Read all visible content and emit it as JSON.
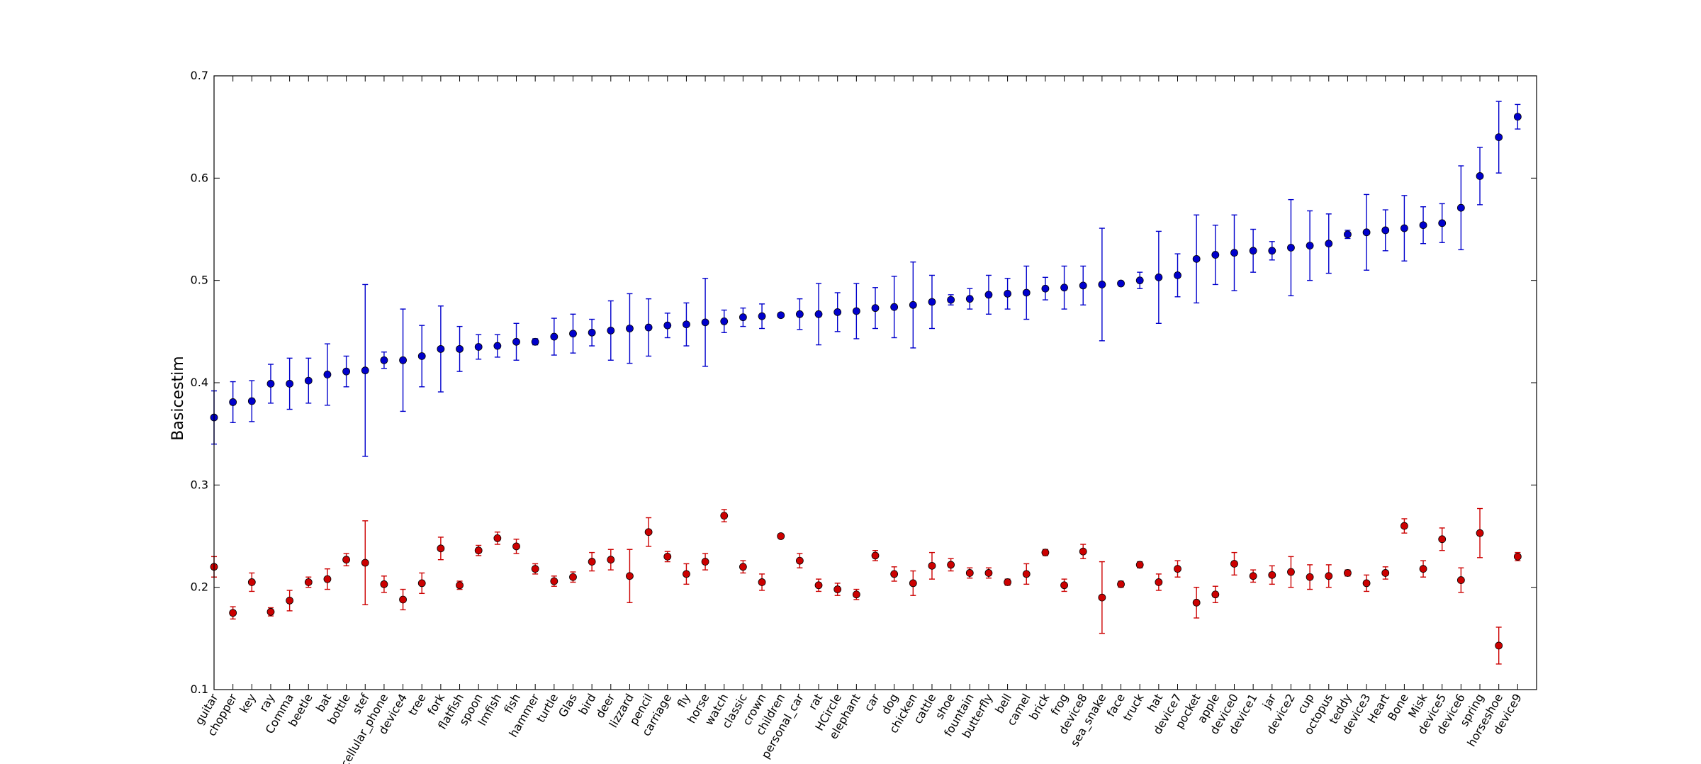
{
  "chart_data": {
    "type": "scatter",
    "ylabel": "Basicestim",
    "ylim": [
      0.1,
      0.7
    ],
    "yticks": [
      "0.1",
      "0.2",
      "0.3",
      "0.4",
      "0.5",
      "0.6",
      "0.7"
    ],
    "grid": false,
    "categories": [
      "guitar",
      "chopper",
      "key",
      "ray",
      "Comma",
      "beetle",
      "bat",
      "bottle",
      "stef",
      "cellular_phone",
      "device4",
      "tree",
      "fork",
      "flatfish",
      "spoon",
      "lmfish",
      "fish",
      "hammer",
      "turtle",
      "Glas",
      "bird",
      "deer",
      "lizzard",
      "pencil",
      "carriage",
      "fly",
      "horse",
      "watch",
      "classic",
      "crown",
      "children",
      "personal_car",
      "rat",
      "HCircle",
      "elephant",
      "car",
      "dog",
      "chicken",
      "cattle",
      "shoe",
      "fountain",
      "butterfly",
      "bell",
      "camel",
      "brick",
      "frog",
      "device8",
      "sea_snake",
      "face",
      "truck",
      "hat",
      "device7",
      "pocket",
      "apple",
      "device0",
      "device1",
      "jar",
      "device2",
      "cup",
      "octopus",
      "teddy",
      "device3",
      "Heart",
      "Bone",
      "Misk",
      "device5",
      "device6",
      "spring",
      "horseshoe",
      "device9"
    ],
    "series": [
      {
        "color": "#0000cc",
        "values": [
          0.366,
          0.381,
          0.382,
          0.399,
          0.399,
          0.402,
          0.408,
          0.411,
          0.412,
          0.422,
          0.422,
          0.426,
          0.433,
          0.433,
          0.435,
          0.436,
          0.44,
          0.44,
          0.445,
          0.448,
          0.449,
          0.451,
          0.453,
          0.454,
          0.456,
          0.457,
          0.459,
          0.46,
          0.464,
          0.465,
          0.466,
          0.467,
          0.467,
          0.469,
          0.47,
          0.473,
          0.474,
          0.476,
          0.479,
          0.481,
          0.482,
          0.486,
          0.487,
          0.488,
          0.492,
          0.493,
          0.495,
          0.496,
          0.497,
          0.5,
          0.503,
          0.505,
          0.521,
          0.525,
          0.527,
          0.529,
          0.529,
          0.532,
          0.534,
          0.536,
          0.545,
          0.547,
          0.549,
          0.551,
          0.554,
          0.556,
          0.571,
          0.602,
          0.64,
          0.66
        ],
        "errors": [
          0.026,
          0.02,
          0.02,
          0.019,
          0.025,
          0.022,
          0.03,
          0.015,
          0.084,
          0.008,
          0.05,
          0.03,
          0.042,
          0.022,
          0.012,
          0.011,
          0.018,
          0.003,
          0.018,
          0.019,
          0.013,
          0.029,
          0.034,
          0.028,
          0.012,
          0.021,
          0.043,
          0.011,
          0.009,
          0.012,
          0.002,
          0.015,
          0.03,
          0.019,
          0.027,
          0.02,
          0.03,
          0.042,
          0.026,
          0.005,
          0.01,
          0.019,
          0.015,
          0.026,
          0.011,
          0.021,
          0.019,
          0.055,
          0.002,
          0.008,
          0.045,
          0.021,
          0.043,
          0.029,
          0.037,
          0.021,
          0.009,
          0.047,
          0.034,
          0.029,
          0.004,
          0.037,
          0.02,
          0.032,
          0.018,
          0.019,
          0.041,
          0.028,
          0.035,
          0.012
        ]
      },
      {
        "color": "#cc0000",
        "values": [
          0.22,
          0.175,
          0.205,
          0.176,
          0.187,
          0.205,
          0.208,
          0.227,
          0.224,
          0.203,
          0.188,
          0.204,
          0.238,
          0.202,
          0.236,
          0.248,
          0.24,
          0.218,
          0.206,
          0.21,
          0.225,
          0.227,
          0.211,
          0.254,
          0.23,
          0.213,
          0.225,
          0.27,
          0.22,
          0.205,
          0.25,
          0.226,
          0.202,
          0.198,
          0.193,
          0.231,
          0.213,
          0.204,
          0.221,
          0.222,
          0.214,
          0.214,
          0.205,
          0.213,
          0.234,
          0.202,
          0.235,
          0.19,
          0.203,
          0.222,
          0.205,
          0.218,
          0.185,
          0.193,
          0.223,
          0.211,
          0.212,
          0.215,
          0.21,
          0.211,
          0.214,
          0.204,
          0.214,
          0.26,
          0.218,
          0.247,
          0.207,
          0.253,
          0.143,
          0.23
        ],
        "errors": [
          0.01,
          0.006,
          0.009,
          0.004,
          0.01,
          0.005,
          0.01,
          0.006,
          0.041,
          0.008,
          0.01,
          0.01,
          0.011,
          0.004,
          0.005,
          0.006,
          0.007,
          0.005,
          0.005,
          0.005,
          0.009,
          0.01,
          0.026,
          0.014,
          0.005,
          0.01,
          0.008,
          0.006,
          0.006,
          0.008,
          0.002,
          0.007,
          0.006,
          0.006,
          0.005,
          0.005,
          0.007,
          0.012,
          0.013,
          0.006,
          0.005,
          0.005,
          0.003,
          0.01,
          0.003,
          0.006,
          0.007,
          0.035,
          0.003,
          0.003,
          0.008,
          0.008,
          0.015,
          0.008,
          0.011,
          0.006,
          0.009,
          0.015,
          0.012,
          0.011,
          0.003,
          0.008,
          0.006,
          0.007,
          0.008,
          0.011,
          0.012,
          0.024,
          0.018,
          0.004
        ]
      }
    ]
  }
}
